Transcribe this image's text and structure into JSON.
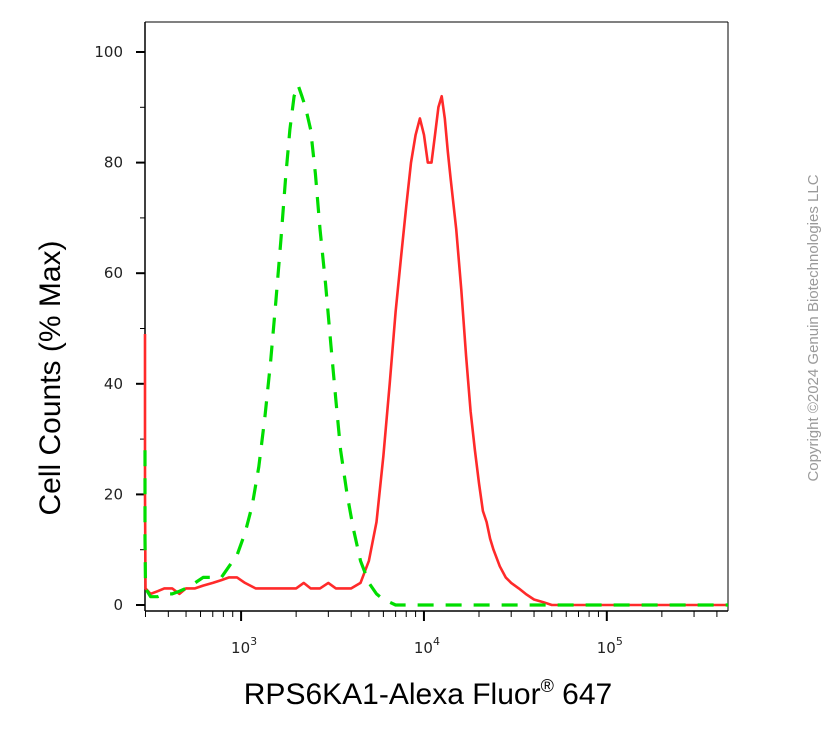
{
  "chart_data": {
    "type": "line",
    "xlabel": "RPS6KA1-Alexa Fluor",
    "xlabel_sup": "®",
    "xlabel_suffix": " 647",
    "ylabel": "Cell Counts (% Max)",
    "x_scale": "log",
    "xlim": [
      280,
      460000
    ],
    "ylim": [
      0,
      102
    ],
    "y_ticks": [
      0,
      20,
      40,
      60,
      80,
      100
    ],
    "y_tick_labels": [
      "0",
      "20",
      "40",
      "60",
      "80",
      "100"
    ],
    "x_tick_labels": [
      {
        "base": "10",
        "exp": "3",
        "value": 1000
      },
      {
        "base": "10",
        "exp": "4",
        "value": 10000
      },
      {
        "base": "10",
        "exp": "5",
        "value": 100000
      }
    ],
    "grid": false,
    "series": [
      {
        "color": "#ff2a2a",
        "dash": "solid",
        "x": [
          280,
          285,
          290,
          300,
          320,
          350,
          380,
          420,
          460,
          500,
          560,
          620,
          700,
          780,
          860,
          950,
          1050,
          1200,
          1400,
          1600,
          1800,
          2000,
          2200,
          2400,
          2700,
          3000,
          3300,
          3600,
          4000,
          4500,
          5000,
          5500,
          6000,
          6500,
          7000,
          7500,
          8000,
          8500,
          9000,
          9500,
          10000,
          10500,
          11000,
          11500,
          12000,
          12500,
          13000,
          13500,
          14000,
          15000,
          16000,
          17000,
          18000,
          19000,
          20000,
          21000,
          22000,
          23000,
          24000,
          26000,
          28000,
          30000,
          33000,
          36000,
          40000,
          45000,
          50000,
          60000,
          80000,
          100000,
          150000,
          200000,
          300000,
          460000
        ],
        "y": [
          49,
          40,
          20,
          3,
          2,
          2.5,
          3,
          3,
          2,
          3,
          3,
          3.5,
          4,
          4.5,
          5,
          5,
          4,
          3,
          3,
          3,
          3,
          3,
          4,
          3,
          3,
          4,
          3,
          3,
          3,
          4,
          8,
          15,
          27,
          40,
          53,
          63,
          72,
          80,
          85,
          88,
          85,
          80,
          80,
          85,
          90,
          92,
          88,
          82,
          77,
          68,
          57,
          45,
          35,
          28,
          22,
          17,
          15,
          12,
          10,
          7,
          5,
          4,
          3,
          2,
          1,
          0.5,
          0,
          0,
          0,
          0,
          0,
          0,
          0,
          0
        ]
      },
      {
        "color": "#00dd00",
        "dash": "dashed",
        "x": [
          280,
          285,
          290,
          300,
          320,
          350,
          380,
          420,
          460,
          500,
          560,
          620,
          700,
          780,
          860,
          950,
          1050,
          1150,
          1250,
          1350,
          1450,
          1550,
          1650,
          1750,
          1850,
          1950,
          2050,
          2150,
          2250,
          2400,
          2550,
          2700,
          2900,
          3100,
          3300,
          3500,
          3800,
          4100,
          4500,
          5000,
          5500,
          6000,
          6500,
          7000,
          8000,
          10000,
          20000,
          50000,
          100000,
          200000,
          460000
        ],
        "y": [
          28,
          22,
          12,
          3,
          1.5,
          1.5,
          2,
          2,
          2.5,
          3,
          4,
          5,
          5,
          5,
          7,
          9,
          13,
          18,
          25,
          34,
          44,
          55,
          66,
          77,
          86,
          92,
          94,
          92,
          90,
          86,
          78,
          68,
          58,
          47,
          37,
          28,
          20,
          14,
          8,
          4,
          2,
          1,
          0.5,
          0,
          0,
          0,
          0,
          0,
          0,
          0,
          0
        ]
      }
    ]
  },
  "copyright": "Copyright ©2024 Genuin Biotechnologies LLC"
}
